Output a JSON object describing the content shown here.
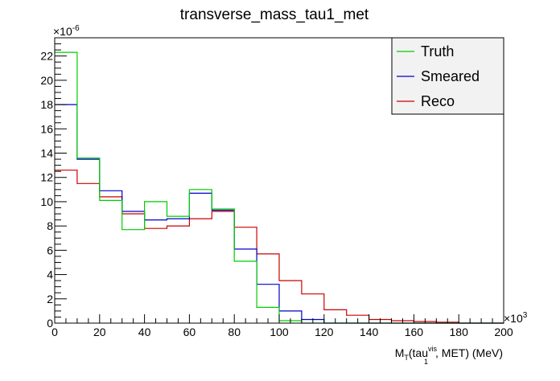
{
  "chart_data": {
    "type": "histogram-step",
    "title": "transverse_mass_tau1_met",
    "xlabel": {
      "main": "M",
      "sub1": "T",
      "mid": "(tau",
      "sup": "vis",
      "sub2": "1",
      "tail": ", MET) (MeV)"
    },
    "x_multiplier": {
      "base": "×10",
      "exp": "3"
    },
    "y_multiplier": {
      "base": "×10",
      "exp": "-6"
    },
    "xlim": [
      0,
      200
    ],
    "ylim": [
      0,
      23.5
    ],
    "x_ticks": [
      "0",
      "20",
      "40",
      "60",
      "80",
      "100",
      "120",
      "140",
      "160",
      "180",
      "200"
    ],
    "y_ticks": [
      "0",
      "2",
      "4",
      "6",
      "8",
      "10",
      "12",
      "14",
      "16",
      "18",
      "20",
      "22"
    ],
    "bin_edges": [
      0,
      10,
      20,
      30,
      40,
      50,
      60,
      70,
      80,
      90,
      100,
      110,
      120,
      130,
      140,
      150,
      160,
      170,
      180,
      190,
      200
    ],
    "series": [
      {
        "name": "Reco",
        "color": "#cc0000",
        "values": [
          12.6,
          11.5,
          10.4,
          9.0,
          7.8,
          8.0,
          8.6,
          9.2,
          7.9,
          5.7,
          3.5,
          2.4,
          1.1,
          0.65,
          0.3,
          0.2,
          0.13,
          0.08,
          0.0,
          0.0
        ]
      },
      {
        "name": "Smeared",
        "color": "#0000cc",
        "values": [
          18.0,
          13.5,
          10.9,
          9.2,
          8.5,
          8.6,
          10.7,
          9.3,
          6.1,
          3.2,
          1.0,
          0.3,
          0.0,
          0.0,
          0.0,
          0.0,
          0.0,
          0.0,
          0.0,
          0.0
        ]
      },
      {
        "name": "Truth",
        "color": "#00cc00",
        "values": [
          22.3,
          13.6,
          10.1,
          7.7,
          10.0,
          8.8,
          11.0,
          9.4,
          5.1,
          1.3,
          0.2,
          0.0,
          0.0,
          0.0,
          0.0,
          0.0,
          0.0,
          0.0,
          0.0,
          0.0
        ]
      }
    ],
    "legend": {
      "placement": "top-right",
      "entries": [
        {
          "label": "Truth",
          "color": "#00cc00"
        },
        {
          "label": "Smeared",
          "color": "#0000cc"
        },
        {
          "label": "Reco",
          "color": "#cc0000"
        }
      ]
    },
    "grid": false
  }
}
